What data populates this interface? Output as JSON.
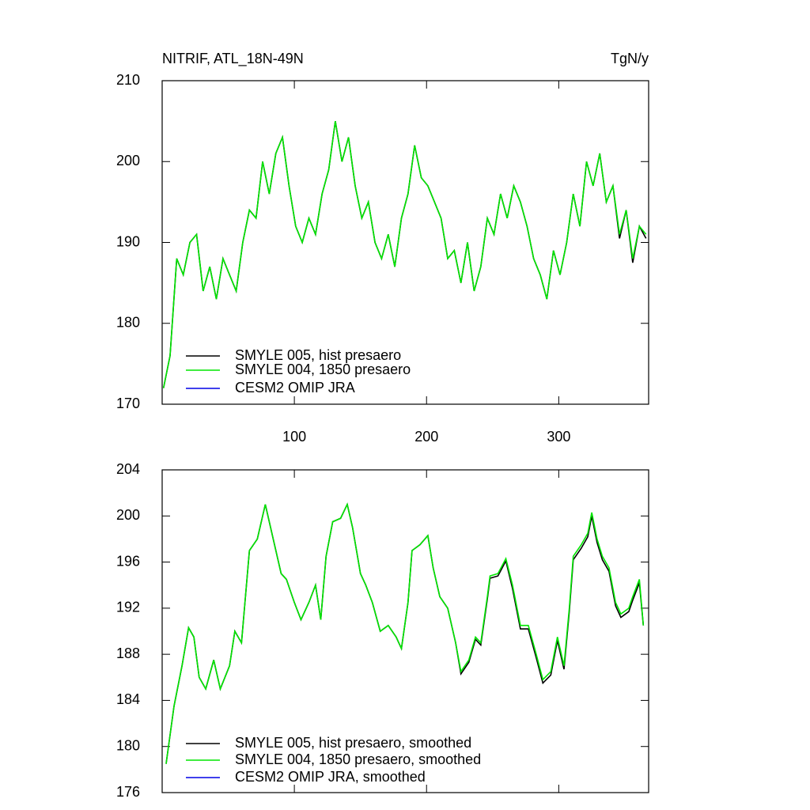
{
  "chart_data": [
    {
      "type": "line",
      "title": "NITRIF, ATL_18N-49N",
      "units": "TgN/y",
      "x": [
        1,
        6,
        11,
        16,
        21,
        26,
        31,
        36,
        41,
        46,
        51,
        56,
        61,
        66,
        71,
        76,
        81,
        86,
        91,
        96,
        101,
        106,
        111,
        116,
        121,
        126,
        131,
        136,
        141,
        146,
        151,
        156,
        161,
        166,
        171,
        176,
        181,
        186,
        191,
        196,
        201,
        206,
        211,
        216,
        221,
        226,
        231,
        236,
        241,
        246,
        251,
        256,
        261,
        266,
        271,
        276,
        281,
        286,
        291,
        296,
        301,
        306,
        311,
        316,
        321,
        326,
        331,
        336,
        341,
        346,
        351,
        356,
        361,
        366
      ],
      "series": [
        {
          "name": "SMYLE 005, hist presaero",
          "color": "#000000",
          "values": [
            172,
            176,
            188,
            186,
            190,
            191,
            184,
            187,
            183,
            188,
            186,
            184,
            190,
            194,
            193,
            200,
            196,
            201,
            203,
            197,
            192,
            190,
            193,
            191,
            196,
            199,
            205,
            200,
            203,
            197,
            193,
            195,
            190,
            188,
            191,
            187,
            193,
            196,
            202,
            198,
            197,
            195,
            193,
            188,
            189,
            185,
            190,
            184,
            187,
            193,
            191,
            196,
            193,
            197,
            195,
            192,
            188,
            186,
            183,
            189,
            186,
            190,
            196,
            192,
            200,
            197,
            201,
            195,
            197,
            190.5,
            194,
            187.5,
            192,
            190.5
          ]
        },
        {
          "name": "SMYLE 004, 1850 presaero",
          "color": "#00e600",
          "values": [
            172,
            176,
            188,
            186,
            190,
            191,
            184,
            187,
            183,
            188,
            186,
            184,
            190,
            194,
            193,
            200,
            196,
            201,
            203,
            197,
            192,
            190,
            193,
            191,
            196,
            199,
            205,
            200,
            203,
            197,
            193,
            195,
            190,
            188,
            191,
            187,
            193,
            196,
            202,
            198,
            197,
            195,
            193,
            188,
            189,
            185,
            190,
            184,
            187,
            193,
            191,
            196,
            193,
            197,
            195,
            192,
            188,
            186,
            183,
            189,
            186,
            190,
            196,
            192,
            200,
            197,
            201,
            195,
            197,
            191,
            194,
            188,
            192,
            191
          ]
        },
        {
          "name": "CESM2 OMIP JRA",
          "color": "#0000e6",
          "values": [
            null,
            null,
            null,
            null,
            null,
            null,
            null,
            null,
            null,
            null,
            null,
            null,
            null,
            null,
            null,
            null,
            null,
            null,
            null,
            null,
            null,
            null,
            null,
            null,
            null,
            null,
            null,
            null,
            null,
            null,
            null,
            null,
            null,
            null,
            null,
            null,
            null,
            null,
            null,
            null,
            null,
            null,
            null,
            null,
            null,
            null,
            null,
            null,
            null,
            null,
            null,
            null,
            null,
            null,
            null,
            null,
            null,
            null,
            null,
            null,
            null,
            null,
            null,
            null,
            null,
            null,
            null,
            null,
            null,
            null,
            null,
            null,
            null,
            null
          ]
        }
      ],
      "xlim": [
        0,
        368
      ],
      "xticks": [
        100,
        200,
        300
      ],
      "xtick_labels_shown": true,
      "ylim": [
        170,
        210
      ],
      "yticks": [
        170,
        180,
        190,
        200,
        210
      ],
      "legend": "lower left"
    },
    {
      "type": "line",
      "x": [
        3,
        9,
        15,
        20,
        24,
        28,
        33,
        39,
        44,
        51,
        55,
        60,
        66,
        72,
        78,
        84,
        90,
        94,
        100,
        105,
        111,
        116,
        120,
        124,
        129,
        135,
        140,
        144,
        150,
        154,
        159,
        165,
        171,
        177,
        181,
        186,
        189,
        195,
        201,
        205,
        210,
        216,
        222,
        226,
        232,
        237,
        241,
        246,
        248,
        254,
        260,
        265,
        271,
        277,
        283,
        288,
        294,
        299,
        304,
        308,
        311,
        317,
        322,
        325,
        329,
        333,
        338,
        343,
        347,
        353,
        356,
        361,
        364
      ],
      "series": [
        {
          "name": "SMYLE 005, hist presaero, smoothed",
          "color": "#000000",
          "values": [
            178.5,
            183.5,
            187,
            190.3,
            189.5,
            186,
            185,
            187.5,
            185,
            187,
            190,
            189,
            197,
            198,
            201,
            198,
            195,
            194.5,
            192.5,
            191,
            192.5,
            194,
            191,
            196.5,
            199.5,
            199.8,
            201,
            199,
            195,
            194,
            192.5,
            190,
            190.5,
            189.5,
            188.5,
            192.5,
            197,
            197.5,
            198.3,
            195.5,
            193,
            192,
            189,
            186.3,
            187.3,
            189.3,
            188.8,
            192.8,
            194.6,
            194.8,
            196.1,
            193.7,
            190.2,
            190.2,
            187.7,
            185.5,
            186.2,
            189.2,
            186.7,
            191.7,
            196.2,
            197.2,
            198.2,
            200,
            197.7,
            196.2,
            195.2,
            192.2,
            191.2,
            191.7,
            192.7,
            194.2,
            190.5
          ]
        },
        {
          "name": "SMYLE 004, 1850 presaero, smoothed",
          "color": "#00e600",
          "values": [
            178.5,
            183.5,
            187,
            190.3,
            189.5,
            186,
            185,
            187.5,
            185,
            187,
            190,
            189,
            197,
            198,
            201,
            198,
            195,
            194.5,
            192.5,
            191,
            192.5,
            194,
            191,
            196.5,
            199.5,
            199.8,
            201,
            199,
            195,
            194,
            192.5,
            190,
            190.5,
            189.5,
            188.5,
            192.5,
            197,
            197.5,
            198.3,
            195.5,
            193,
            192,
            189,
            186.5,
            187.5,
            189.5,
            189,
            193,
            194.8,
            195,
            196.3,
            194,
            190.5,
            190.5,
            188,
            185.8,
            186.5,
            189.5,
            187,
            192,
            196.5,
            197.5,
            198.5,
            200.3,
            198,
            196.5,
            195.5,
            192.5,
            191.5,
            192,
            193,
            194.5,
            190.5
          ]
        },
        {
          "name": "CESM2 OMIP JRA, smoothed",
          "color": "#0000e6",
          "values": [
            null,
            null,
            null,
            null,
            null,
            null,
            null,
            null,
            null,
            null,
            null,
            null,
            null,
            null,
            null,
            null,
            null,
            null,
            null,
            null,
            null,
            null,
            null,
            null,
            null,
            null,
            null,
            null,
            null,
            null,
            null,
            null,
            null,
            null,
            null,
            null,
            null,
            null,
            null,
            null,
            null,
            null,
            null,
            null,
            null,
            null,
            null,
            null,
            null,
            null,
            null,
            null,
            null,
            null,
            null,
            null,
            null,
            null,
            null,
            null,
            null,
            null,
            null,
            null,
            null,
            null,
            null,
            null,
            null,
            null,
            null,
            null,
            null
          ]
        }
      ],
      "xlim": [
        0,
        368
      ],
      "xticks": [
        100,
        200,
        300
      ],
      "xtick_labels_shown": false,
      "ylim": [
        176,
        204
      ],
      "yticks": [
        176,
        180,
        184,
        188,
        192,
        196,
        200,
        204
      ],
      "legend": "lower left"
    }
  ]
}
